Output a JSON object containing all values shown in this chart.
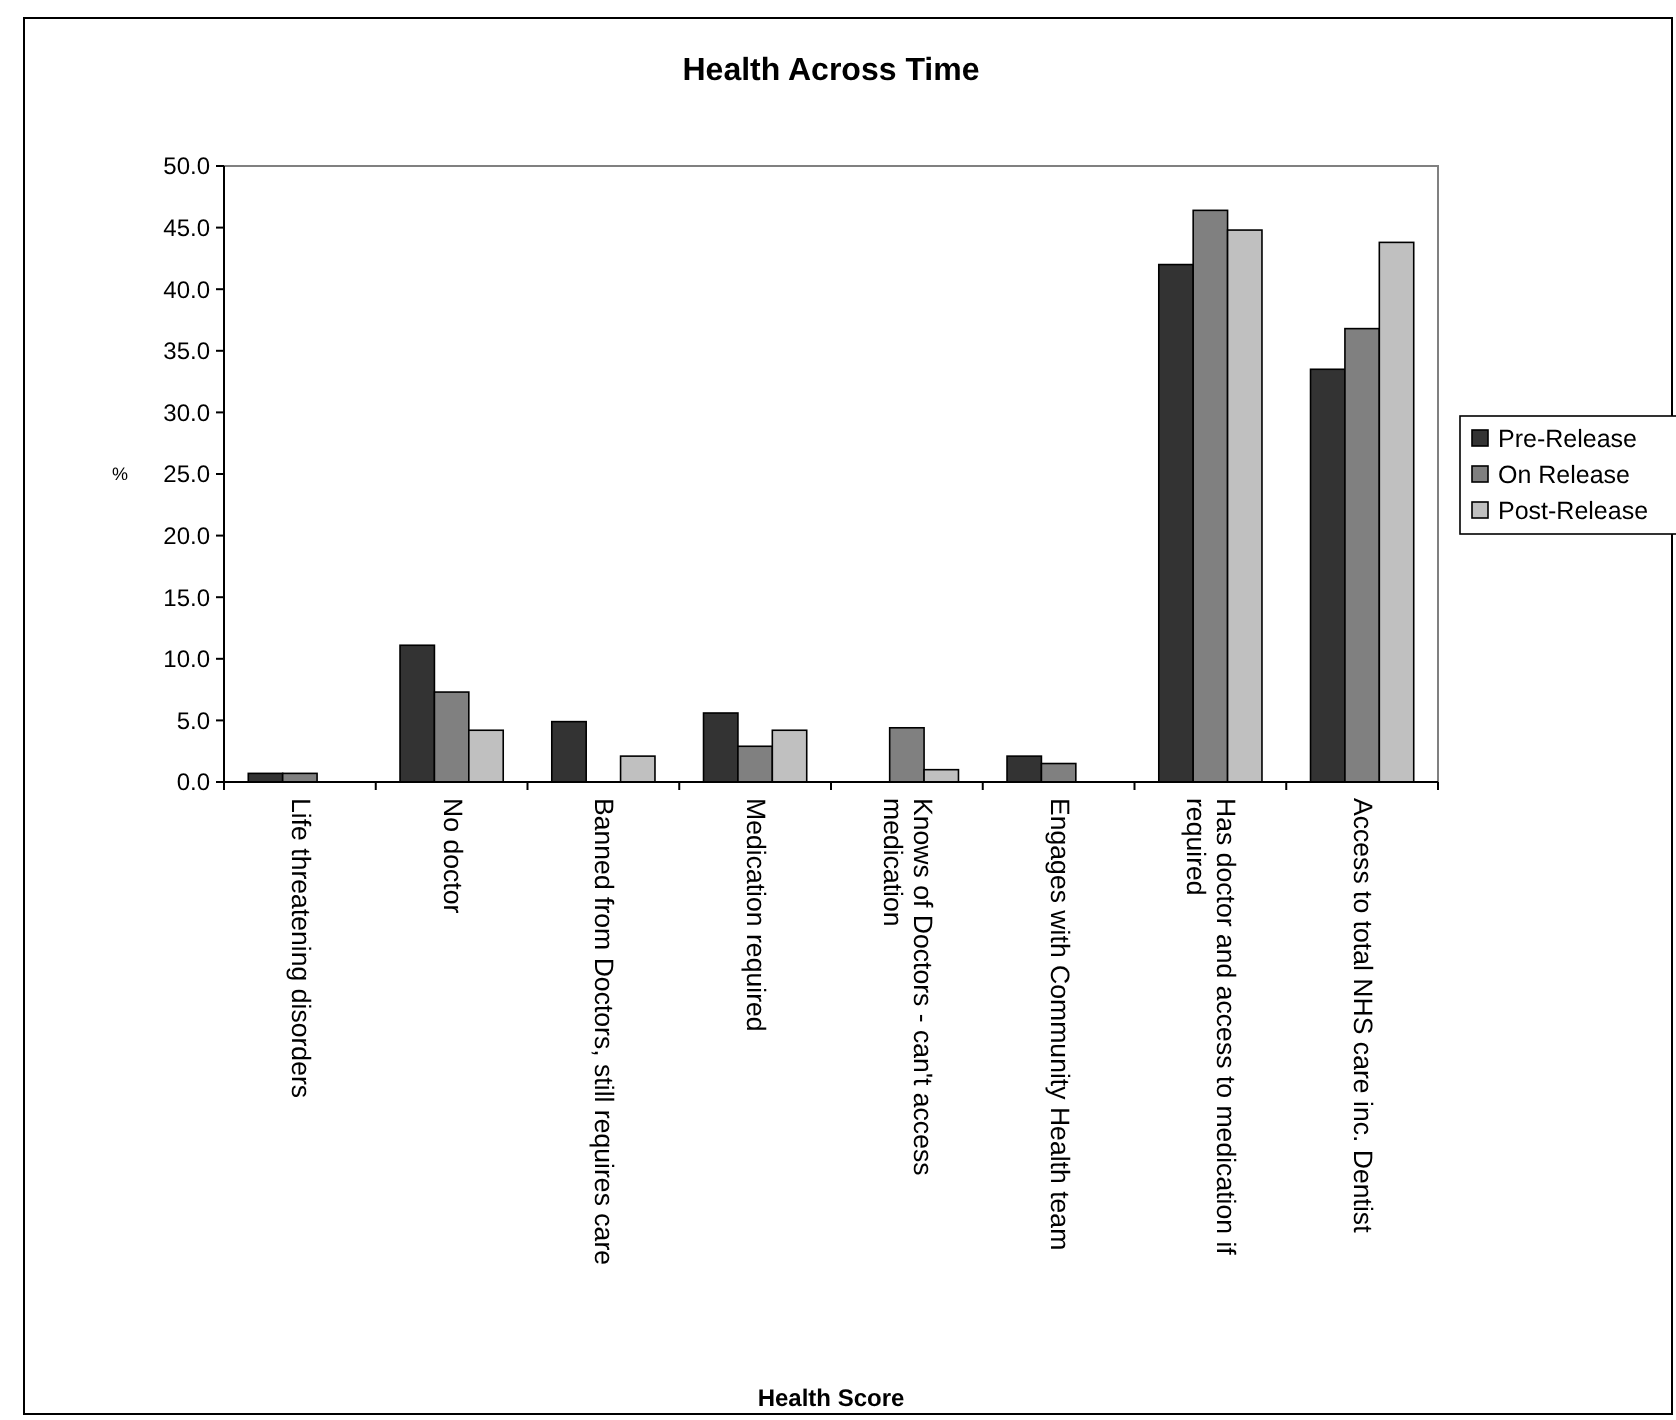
{
  "chart_data": {
    "type": "bar",
    "title": "Health Across Time",
    "xlabel": "Health Score",
    "ylabel": "%",
    "categories": [
      "Life threatening disorders",
      "No doctor",
      "Banned from Doctors, still requires care",
      "Medication required",
      "Knows of Doctors - can't access medication",
      "Engages with Community Health team",
      "Has doctor and access to medication if required",
      "Access to total NHS care inc. Dentist"
    ],
    "series": [
      {
        "name": "Pre-Release",
        "color": "#333333",
        "values": [
          0.7,
          11.1,
          4.9,
          5.6,
          0,
          2.1,
          42.0,
          33.5
        ]
      },
      {
        "name": "On Release",
        "color": "#808080",
        "values": [
          0.7,
          7.3,
          0,
          2.9,
          4.4,
          1.5,
          46.4,
          36.8
        ]
      },
      {
        "name": "Post-Release",
        "color": "#c0c0c0",
        "values": [
          0,
          4.2,
          2.1,
          4.2,
          1.0,
          0,
          44.8,
          43.8
        ]
      }
    ],
    "ylim": [
      0,
      50
    ],
    "yticks": [
      {
        "value": 0,
        "label": "0.0"
      },
      {
        "value": 5,
        "label": "5.0"
      },
      {
        "value": 10,
        "label": "10.0"
      },
      {
        "value": 15,
        "label": "15.0"
      },
      {
        "value": 20,
        "label": "20.0"
      },
      {
        "value": 25,
        "label": "25.0"
      },
      {
        "value": 30,
        "label": "30.0"
      },
      {
        "value": 35,
        "label": "35.0"
      },
      {
        "value": 40,
        "label": "40.0"
      },
      {
        "value": 45,
        "label": "45.0"
      },
      {
        "value": 50,
        "label": "50.0"
      }
    ],
    "grid": false,
    "legend": "right"
  }
}
